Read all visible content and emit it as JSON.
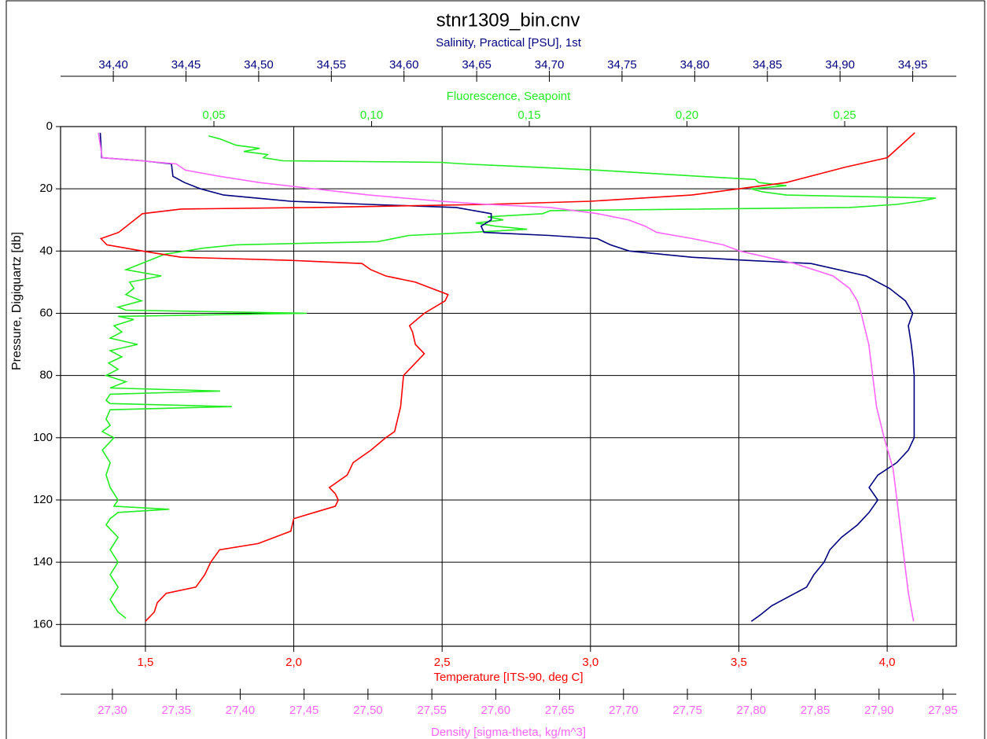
{
  "chart_data": {
    "type": "profile",
    "title": "stnr1309_bin.cnv",
    "y_label": "Pressure, Digiquartz [db]",
    "ylim": [
      0,
      167
    ],
    "y_inverted": true,
    "yticks": [
      0,
      20,
      40,
      60,
      80,
      100,
      120,
      140,
      160
    ],
    "grid": true,
    "axes": [
      {
        "label": "Fluorescence, Seapoint",
        "color": "#22ee22",
        "side": "top",
        "xlim": [
          0.00137,
          0.2854
        ],
        "xticks": [
          {
            "value": 0.05,
            "label": "0,05"
          },
          {
            "value": 0.1,
            "label": "0,10"
          },
          {
            "value": 0.15,
            "label": "0,15"
          },
          {
            "value": 0.2,
            "label": "0,20"
          },
          {
            "value": 0.25,
            "label": "0,25"
          }
        ],
        "y": [
          3,
          4,
          5,
          6,
          7,
          8,
          9,
          10,
          11,
          11.5,
          12,
          14,
          16,
          17,
          18,
          19,
          20,
          21,
          22,
          23,
          24,
          25,
          26,
          27,
          28,
          29,
          30,
          31,
          32,
          33,
          34,
          35,
          37,
          38,
          39,
          40,
          41,
          42,
          44,
          46,
          48,
          50,
          52,
          54,
          56,
          58,
          59,
          60,
          61,
          62,
          64,
          66,
          68,
          70,
          72,
          74,
          76,
          78,
          80,
          82,
          84,
          85,
          86,
          88,
          89,
          90,
          91,
          94,
          96,
          98,
          100,
          104,
          108,
          112,
          116,
          120,
          122,
          123,
          124,
          126,
          128,
          132,
          136,
          140,
          144,
          148,
          152,
          156,
          158
        ],
        "values": [
          0.0483,
          0.052,
          0.0545,
          0.057,
          0.0645,
          0.0595,
          0.067,
          0.0657,
          0.0719,
          0.1218,
          0.1293,
          0.1717,
          0.2041,
          0.2216,
          0.2228,
          0.2315,
          0.2203,
          0.2241,
          0.2315,
          0.2789,
          0.2739,
          0.2665,
          0.2515,
          0.1567,
          0.1542,
          0.1368,
          0.1418,
          0.133,
          0.1393,
          0.1493,
          0.1318,
          0.1118,
          0.1019,
          0.057,
          0.047,
          0.0408,
          0.0345,
          0.032,
          0.027,
          0.0221,
          0.0333,
          0.0233,
          0.0246,
          0.0221,
          0.027,
          0.0196,
          0.0221,
          0.0794,
          0.0196,
          0.0246,
          0.0183,
          0.0208,
          0.0171,
          0.0258,
          0.0171,
          0.0208,
          0.0166,
          0.0196,
          0.0158,
          0.0221,
          0.0171,
          0.052,
          0.0171,
          0.0158,
          0.0171,
          0.0557,
          0.0171,
          0.0158,
          0.0171,
          0.0146,
          0.0183,
          0.0146,
          0.0171,
          0.0158,
          0.0171,
          0.0196,
          0.0183,
          0.0358,
          0.0196,
          0.0171,
          0.0158,
          0.0196,
          0.0171,
          0.0196,
          0.0171,
          0.0196,
          0.0171,
          0.0196,
          0.0221
        ]
      },
      {
        "label": "Salinity, Practical [PSU], 1st",
        "color": "#000080",
        "side": "top",
        "xlim": [
          34.3637,
          34.98
        ],
        "xticks": [
          {
            "value": 34.4,
            "label": "34,40"
          },
          {
            "value": 34.45,
            "label": "34,45"
          },
          {
            "value": 34.5,
            "label": "34,50"
          },
          {
            "value": 34.55,
            "label": "34,55"
          },
          {
            "value": 34.6,
            "label": "34,60"
          },
          {
            "value": 34.65,
            "label": "34,65"
          },
          {
            "value": 34.7,
            "label": "34,70"
          },
          {
            "value": 34.75,
            "label": "34,75"
          },
          {
            "value": 34.8,
            "label": "34,80"
          },
          {
            "value": 34.85,
            "label": "34,85"
          },
          {
            "value": 34.9,
            "label": "34,90"
          },
          {
            "value": 34.95,
            "label": "34,95"
          }
        ],
        "y": [
          2,
          10,
          11,
          12,
          16,
          18,
          20,
          22,
          24,
          25,
          26,
          28,
          30,
          32,
          34,
          35,
          36,
          38,
          40,
          42,
          43,
          44,
          48,
          52,
          56,
          60,
          64,
          70,
          74,
          80,
          90,
          100,
          104,
          108,
          112,
          116,
          120,
          124,
          128,
          132,
          136,
          140,
          144,
          148,
          150,
          152,
          154,
          157,
          159
        ],
        "values": [
          34.391,
          34.392,
          34.42,
          34.44,
          34.441,
          34.449,
          34.46,
          34.476,
          34.522,
          34.576,
          34.636,
          34.66,
          34.66,
          34.653,
          34.655,
          34.7,
          34.733,
          34.742,
          34.755,
          34.798,
          34.836,
          34.88,
          34.918,
          34.934,
          34.945,
          34.95,
          34.947,
          34.949,
          34.95,
          34.951,
          34.951,
          34.951,
          34.947,
          34.939,
          34.926,
          34.92,
          34.926,
          34.92,
          34.912,
          34.901,
          34.893,
          34.889,
          34.882,
          34.877,
          34.869,
          34.861,
          34.853,
          34.845,
          34.839
        ]
      },
      {
        "label": "Temperature [ITS-90, deg C]",
        "color": "#ff0000",
        "side": "bottom",
        "grid": true,
        "xlim": [
          1.214,
          4.233
        ],
        "xticks": [
          {
            "value": 1.5,
            "label": "1,5"
          },
          {
            "value": 2,
            "label": "2,0"
          },
          {
            "value": 2.5,
            "label": "2,5"
          },
          {
            "value": 3,
            "label": "3,0"
          },
          {
            "value": 3.5,
            "label": "3,5"
          },
          {
            "value": 4,
            "label": "4,0"
          }
        ],
        "y": [
          2,
          10,
          13,
          18,
          22,
          24,
          25,
          26,
          26.5,
          28,
          34,
          36,
          38,
          40,
          42,
          43,
          44,
          46,
          48,
          50,
          54,
          56,
          60,
          64,
          66,
          70,
          73,
          76,
          80,
          90,
          98,
          100,
          104,
          108,
          112,
          116,
          118,
          120,
          122,
          124,
          126,
          130,
          134,
          136,
          140,
          144,
          148,
          150,
          153,
          156,
          159
        ],
        "values": [
          4.093,
          4.0,
          3.86,
          3.66,
          3.34,
          3.0,
          2.65,
          2.07,
          1.62,
          1.49,
          1.41,
          1.35,
          1.37,
          1.49,
          1.62,
          1.99,
          2.23,
          2.26,
          2.31,
          2.41,
          2.52,
          2.51,
          2.44,
          2.39,
          2.4,
          2.41,
          2.44,
          2.41,
          2.37,
          2.36,
          2.34,
          2.31,
          2.26,
          2.2,
          2.18,
          2.12,
          2.14,
          2.15,
          2.14,
          2.07,
          2.0,
          1.99,
          1.88,
          1.75,
          1.72,
          1.7,
          1.67,
          1.57,
          1.54,
          1.53,
          1.5
        ]
      },
      {
        "label": "Density [sigma-theta, kg/m^3]",
        "color": "#ff66ff",
        "side": "bottom",
        "xlim": [
          27.2594,
          27.9605
        ],
        "xticks": [
          {
            "value": 27.3,
            "label": "27,30"
          },
          {
            "value": 27.35,
            "label": "27,35"
          },
          {
            "value": 27.4,
            "label": "27,40"
          },
          {
            "value": 27.45,
            "label": "27,45"
          },
          {
            "value": 27.5,
            "label": "27,50"
          },
          {
            "value": 27.55,
            "label": "27,55"
          },
          {
            "value": 27.6,
            "label": "27,60"
          },
          {
            "value": 27.65,
            "label": "27,65"
          },
          {
            "value": 27.7,
            "label": "27,70"
          },
          {
            "value": 27.75,
            "label": "27,75"
          },
          {
            "value": 27.8,
            "label": "27,80"
          },
          {
            "value": 27.85,
            "label": "27,85"
          },
          {
            "value": 27.9,
            "label": "27,90"
          },
          {
            "value": 27.95,
            "label": "27,95"
          }
        ],
        "y": [
          2,
          10,
          11,
          12,
          14,
          16,
          18,
          20,
          22,
          24,
          25,
          26,
          28,
          30,
          32,
          34,
          36,
          38,
          40,
          44,
          48,
          52,
          56,
          60,
          70,
          80,
          90,
          100,
          110,
          120,
          130,
          140,
          150,
          159
        ],
        "values": [
          27.289,
          27.292,
          27.323,
          27.35,
          27.357,
          27.384,
          27.415,
          27.458,
          27.501,
          27.557,
          27.594,
          27.643,
          27.68,
          27.704,
          27.717,
          27.726,
          27.754,
          27.778,
          27.791,
          27.834,
          27.864,
          27.877,
          27.883,
          27.886,
          27.892,
          27.895,
          27.898,
          27.904,
          27.911,
          27.914,
          27.917,
          27.92,
          27.923,
          27.927
        ]
      }
    ]
  }
}
